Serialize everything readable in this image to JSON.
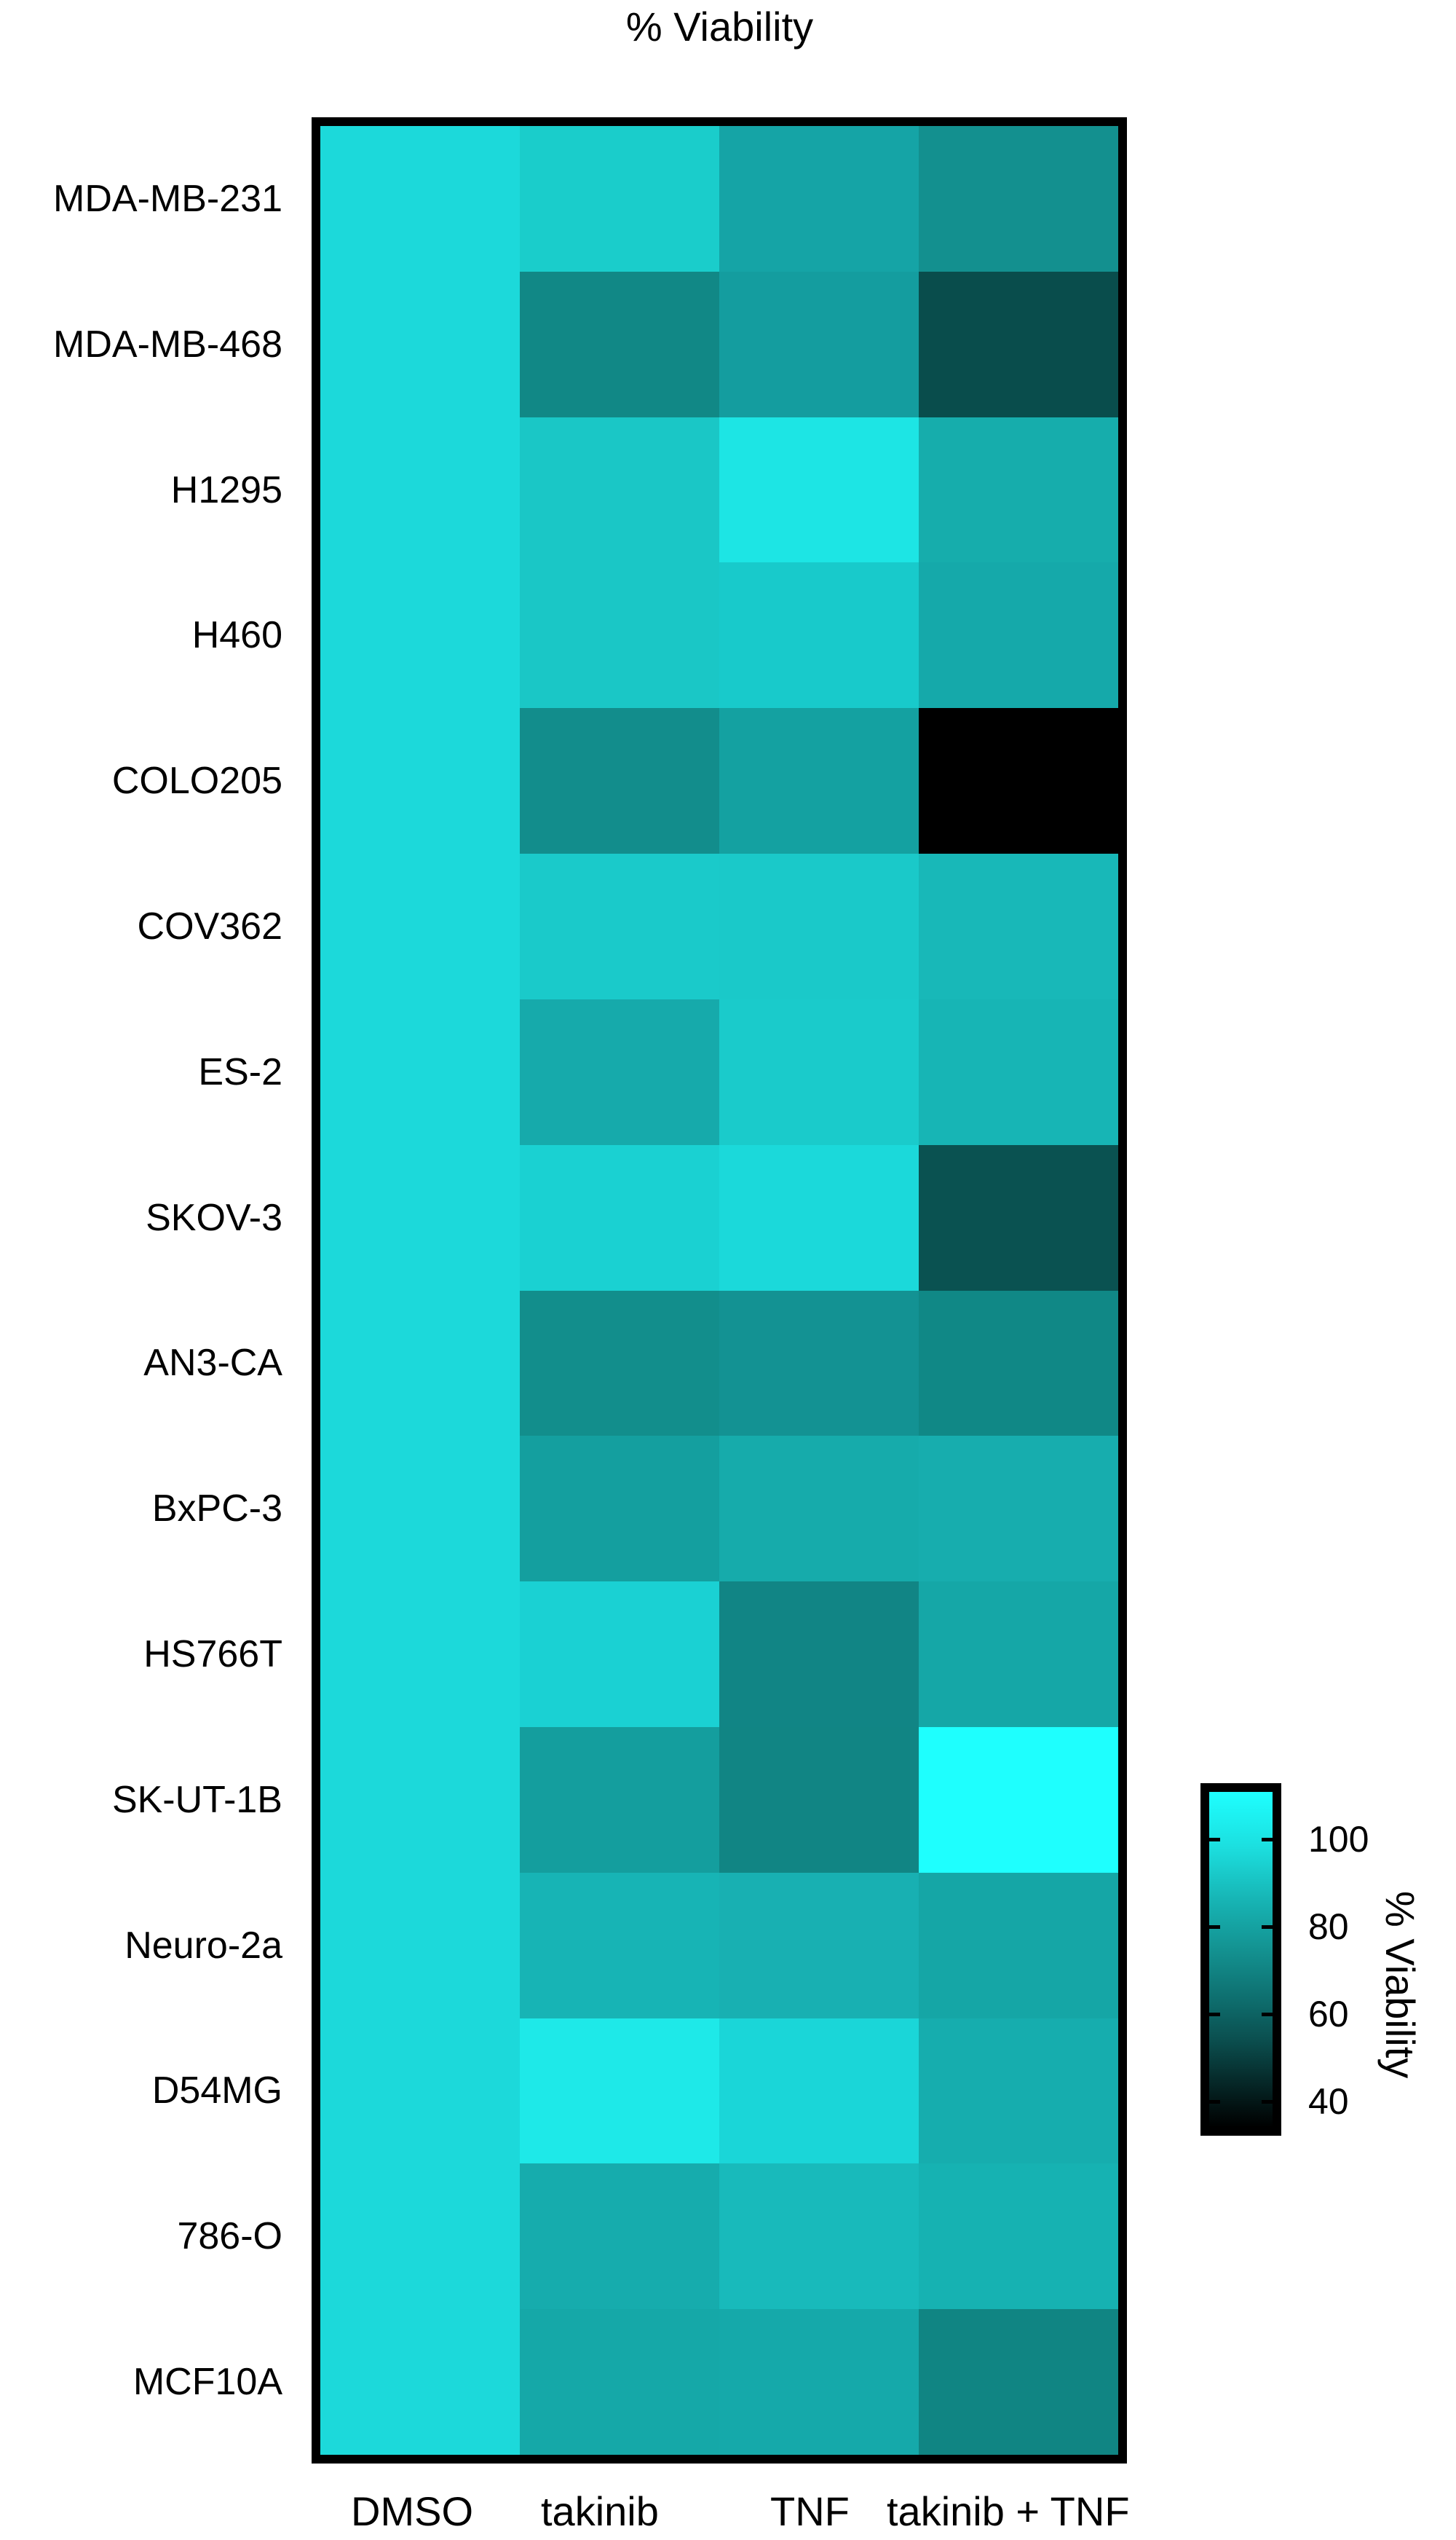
{
  "title": "% Viability",
  "chart_data": {
    "type": "heatmap",
    "title": "% Viability",
    "xlabel": "",
    "ylabel": "",
    "columns": [
      "DMSO",
      "takinib",
      "TNF",
      "takinib + TNF"
    ],
    "rows": [
      "MDA-MB-231",
      "MDA-MB-468",
      "H1295",
      "H460",
      "COLO205",
      "COV362",
      "ES-2",
      "SKOV-3",
      "AN3-CA",
      "BxPC-3",
      "HS766T",
      "SK-UT-1B",
      "Neuro-2a",
      "D54MG",
      "786-O",
      "MCF10A"
    ],
    "values": [
      [
        100,
        96,
        83.5,
        77
      ],
      [
        100,
        75,
        81,
        56
      ],
      [
        100,
        94.5,
        104,
        86
      ],
      [
        100,
        94.5,
        95,
        85
      ],
      [
        100,
        76,
        82.5,
        32
      ],
      [
        100,
        95,
        95,
        90
      ],
      [
        100,
        85,
        96,
        89
      ],
      [
        100,
        97.5,
        100,
        58
      ],
      [
        100,
        76.5,
        78,
        75
      ],
      [
        100,
        82,
        86,
        86
      ],
      [
        100,
        97.5,
        74,
        84
      ],
      [
        100,
        81.5,
        74,
        112
      ],
      [
        100,
        88.5,
        87,
        84
      ],
      [
        100,
        105,
        99,
        86
      ],
      [
        100,
        86,
        90,
        88
      ],
      [
        100,
        85,
        85,
        74
      ]
    ],
    "cell_colors": [
      [
        "#1cd9da",
        "#1acdcb",
        "#15a4a6",
        "#13908f"
      ],
      [
        "#1cd9da",
        "#118886",
        "#149d9f",
        "#094d4c"
      ],
      [
        "#1cd9da",
        "#1ac7c6",
        "#1de5e4",
        "#16adac"
      ],
      [
        "#1cd9da",
        "#1ac7c6",
        "#18cacb",
        "#15a9aa"
      ],
      [
        "#1cd9da",
        "#128d8c",
        "#14a1a1",
        "#000000"
      ],
      [
        "#1cd9da",
        "#1acaca",
        "#1ac9c9",
        "#18b8b8"
      ],
      [
        "#1cd9da",
        "#16aaab",
        "#1acbcb",
        "#17b5b5"
      ],
      [
        "#1cd9da",
        "#1ad1d2",
        "#1bd9da",
        "#0a5251"
      ],
      [
        "#1cd9da",
        "#128e8c",
        "#139293",
        "#108886"
      ],
      [
        "#1cd9da",
        "#149f9f",
        "#16abab",
        "#17adae"
      ],
      [
        "#1cd9da",
        "#1ad1d3",
        "#118585",
        "#15a7a7"
      ],
      [
        "#1cd9da",
        "#149e9e",
        "#118584",
        "#1efffe"
      ],
      [
        "#1cd9da",
        "#17b4b5",
        "#18b0b2",
        "#15a6a6"
      ],
      [
        "#1cd9da",
        "#1ee9e8",
        "#1ad6d8",
        "#16adae"
      ],
      [
        "#1cd9da",
        "#16acad",
        "#18babb",
        "#16b2b2"
      ],
      [
        "#1cd9da",
        "#15a8a8",
        "#15a9aa",
        "#108583"
      ]
    ],
    "colorbar": {
      "title": "% Viability",
      "ticks": [
        100,
        80,
        60,
        40
      ],
      "range": [
        32,
        112
      ],
      "color_low": "#000000",
      "color_high": "#1effff"
    },
    "grid": false,
    "legend_position": "right"
  },
  "colorbar": {
    "title": "% Viability",
    "tick_labels": [
      "100",
      "80",
      "60",
      "40"
    ]
  }
}
